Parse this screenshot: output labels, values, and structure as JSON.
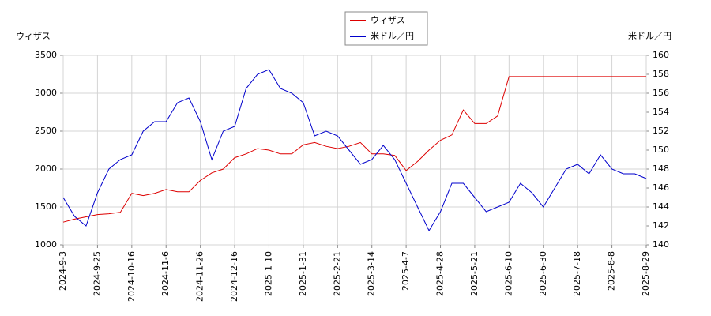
{
  "chart_data": {
    "type": "line",
    "y_label": "ウィザス",
    "y2_label": "米ドル／円",
    "categories": [
      "2024-9-3",
      null,
      null,
      "2024-9-25",
      null,
      null,
      "2024-10-16",
      null,
      null,
      "2024-11-6",
      null,
      null,
      "2024-11-26",
      null,
      null,
      "2024-12-16",
      null,
      null,
      "2025-1-10",
      null,
      null,
      "2025-1-31",
      null,
      null,
      "2025-2-21",
      null,
      null,
      "2025-3-14",
      null,
      null,
      "2025-4-7",
      null,
      null,
      "2025-4-28",
      null,
      null,
      "2025-5-21",
      null,
      null,
      "2025-6-10",
      null,
      null,
      "2025-6-30",
      null,
      null,
      "2025-7-18",
      null,
      null,
      "2025-8-8",
      null,
      null,
      "2025-8-29"
    ],
    "series": [
      {
        "name": "ウィザス",
        "color": "#dd0000",
        "axis": "y",
        "values": [
          1300,
          1340,
          1370,
          1400,
          1410,
          1430,
          1680,
          1650,
          1680,
          1730,
          1700,
          1700,
          1850,
          1950,
          2000,
          2150,
          2200,
          2270,
          2250,
          2200,
          2200,
          2320,
          2350,
          2300,
          2270,
          2300,
          2350,
          2200,
          2200,
          2180,
          1980,
          2100,
          2250,
          2380,
          2450,
          2780,
          2600,
          2600,
          2700,
          3220,
          3220,
          3220,
          3220,
          3220,
          3220,
          3220,
          3220,
          3220,
          3220,
          3220,
          3220,
          3220
        ]
      },
      {
        "name": "米ドル／円",
        "color": "#0000cc",
        "axis": "y2",
        "values": [
          145,
          143,
          142,
          145.5,
          148,
          149,
          149.5,
          152,
          153,
          153,
          155,
          155.5,
          153,
          149,
          152,
          152.5,
          156.5,
          158,
          158.5,
          156.5,
          156,
          155,
          151.5,
          152,
          151.5,
          150,
          148.5,
          149,
          150.5,
          149,
          146.5,
          144,
          141.5,
          143.5,
          146.5,
          146.5,
          145,
          143.5,
          144,
          144.5,
          146.5,
          145.5,
          144,
          146,
          148,
          148.5,
          147.5,
          149.5,
          148,
          147.5,
          147.5,
          147
        ]
      }
    ],
    "ylim": [
      1000,
      3500
    ],
    "yticks": [
      1000,
      1500,
      2000,
      2500,
      3000,
      3500
    ],
    "y2lim": [
      140,
      160
    ],
    "y2ticks": [
      140,
      142,
      144,
      146,
      148,
      150,
      152,
      154,
      156,
      158,
      160
    ],
    "grid": true,
    "legend": "top"
  }
}
